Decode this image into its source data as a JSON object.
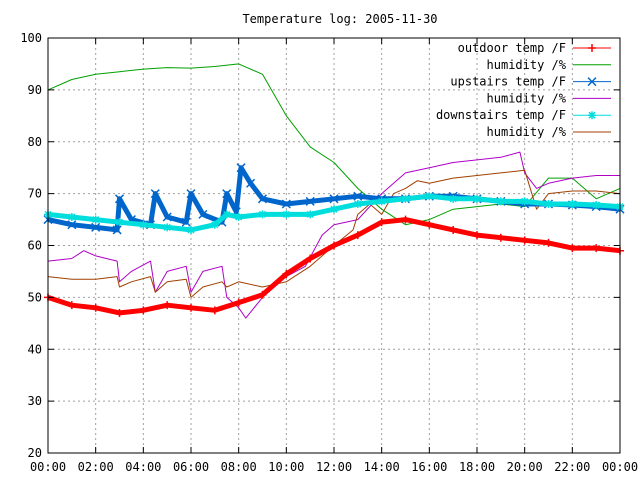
{
  "chart_data": {
    "type": "line",
    "title": "Temperature log: 2005-11-30",
    "xlabel": "",
    "ylabel": "",
    "x_ticks": [
      "00:00",
      "02:00",
      "04:00",
      "06:00",
      "08:00",
      "10:00",
      "12:00",
      "14:00",
      "16:00",
      "18:00",
      "20:00",
      "22:00",
      "00:00"
    ],
    "y_ticks": [
      20,
      30,
      40,
      50,
      60,
      70,
      80,
      90,
      100
    ],
    "xlim": [
      0,
      24
    ],
    "ylim": [
      20,
      100
    ],
    "grid": true,
    "legend_position": "top-right",
    "series": [
      {
        "name": "outdoor temp /F",
        "color": "#ff0000",
        "marker": "plus",
        "x": [
          0,
          1,
          2,
          3,
          4,
          5,
          6,
          7,
          8,
          9,
          10,
          11,
          12,
          13,
          14,
          15,
          16,
          17,
          18,
          19,
          20,
          21,
          22,
          23,
          24
        ],
        "y": [
          50,
          48.5,
          48,
          47,
          47.5,
          48.5,
          48,
          47.5,
          49,
          50.5,
          54.5,
          57.5,
          60,
          62,
          64.5,
          65,
          64,
          63,
          62,
          61.5,
          61,
          60.5,
          59.5,
          59.5,
          59
        ]
      },
      {
        "name": "humidity /%",
        "color": "#00a000",
        "marker": "none",
        "x": [
          0,
          1,
          2,
          3,
          4,
          5,
          6,
          7,
          8,
          9,
          10,
          11,
          12,
          13,
          14,
          15,
          16,
          17,
          18,
          19,
          20,
          21,
          22,
          23,
          24
        ],
        "y": [
          90,
          92,
          93,
          93.5,
          94,
          94.3,
          94.2,
          94.5,
          95,
          93,
          85,
          79,
          76,
          71,
          67,
          64,
          65,
          67,
          67.5,
          68,
          67.5,
          73,
          73,
          69,
          71
        ]
      },
      {
        "name": "upstairs temp /F",
        "color": "#0066cc",
        "marker": "x",
        "x": [
          0,
          1,
          2,
          2.9,
          3.0,
          3.5,
          4.3,
          4.5,
          5.0,
          5.8,
          6.0,
          6.5,
          7.3,
          7.5,
          7.9,
          8.1,
          8.5,
          9.0,
          10,
          11,
          12,
          13,
          14,
          15,
          16,
          17,
          18,
          19,
          20,
          21,
          22,
          23,
          24
        ],
        "y": [
          65,
          64,
          63.5,
          63,
          69,
          65,
          64,
          70,
          65.5,
          64.5,
          70,
          66,
          64.5,
          70,
          66.5,
          75,
          72,
          69,
          68,
          68.5,
          69,
          69.5,
          69,
          69,
          69.5,
          69.5,
          69,
          68.5,
          68,
          68,
          67.8,
          67.5,
          67
        ]
      },
      {
        "name": "humidity /%",
        "color": "#b000c8",
        "marker": "none",
        "x": [
          0,
          1,
          1.5,
          2,
          2.9,
          3.0,
          3.5,
          4.3,
          4.5,
          5.0,
          5.8,
          6.0,
          6.5,
          7.3,
          7.5,
          8,
          8.3,
          9,
          10,
          10.8,
          11.5,
          12,
          13,
          14,
          15,
          16,
          17,
          18,
          19,
          19.8,
          20,
          20.5,
          21,
          22,
          23,
          24
        ],
        "y": [
          57,
          57.5,
          59,
          58,
          57,
          53,
          55,
          57,
          51,
          55,
          56,
          51,
          55,
          56,
          50,
          48,
          46,
          50,
          54,
          56,
          62,
          64,
          65,
          70,
          74,
          75,
          76,
          76.5,
          77,
          78,
          74,
          71,
          72,
          73,
          73.5,
          73.5
        ]
      },
      {
        "name": "downstairs temp /F",
        "color": "#00dddd",
        "marker": "star",
        "x": [
          0,
          1,
          2,
          3,
          4,
          5,
          6,
          7,
          7.5,
          8,
          9,
          10,
          11,
          12,
          13,
          14,
          15,
          16,
          17,
          18,
          19,
          20,
          21,
          22,
          23,
          24
        ],
        "y": [
          66,
          65.5,
          65,
          64.5,
          64,
          63.5,
          63,
          64,
          66,
          65.5,
          66,
          66,
          66,
          67,
          68,
          68.5,
          69,
          69.5,
          69,
          69,
          68.5,
          68.5,
          68,
          68,
          67.8,
          67.5
        ]
      },
      {
        "name": "humidity /%",
        "color": "#a04000",
        "marker": "none",
        "x": [
          0,
          1,
          2,
          2.9,
          3.0,
          3.5,
          4.3,
          4.5,
          5.0,
          5.8,
          6.0,
          6.5,
          7.3,
          7.5,
          8,
          9,
          10,
          11,
          12,
          12.8,
          13,
          13.5,
          14,
          14.5,
          15,
          15.5,
          16,
          17,
          18,
          19,
          20,
          20.5,
          21,
          22,
          23,
          24
        ],
        "y": [
          54,
          53.5,
          53.5,
          54,
          52,
          53,
          54,
          51,
          53,
          53.5,
          50,
          52,
          53,
          52,
          53,
          52,
          53,
          56,
          60,
          63,
          66,
          68,
          66,
          70,
          71,
          72.5,
          72,
          73,
          73.5,
          74,
          74.5,
          67,
          70,
          70.5,
          70.5,
          70
        ]
      }
    ]
  }
}
